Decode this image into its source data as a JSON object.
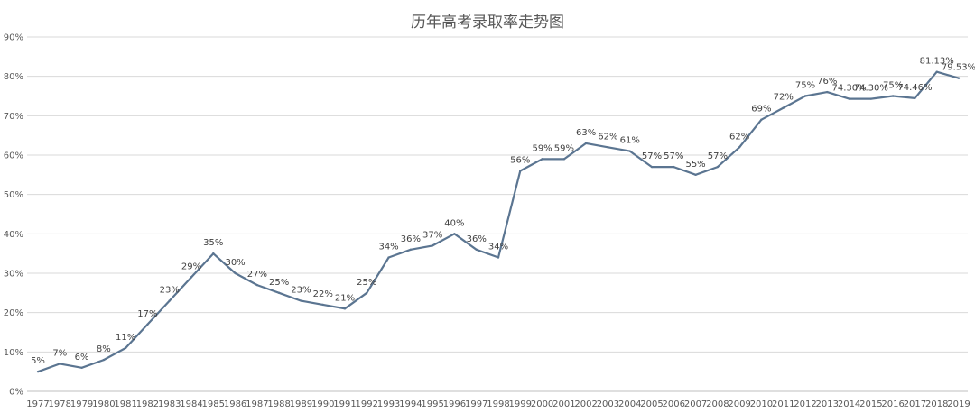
{
  "chart_data": {
    "type": "line",
    "title": "历年高考录取率走势图",
    "xlabel": "",
    "ylabel": "",
    "ylim": [
      0,
      90
    ],
    "y_ticks": [
      "0%",
      "10%",
      "20%",
      "30%",
      "40%",
      "50%",
      "60%",
      "70%",
      "80%",
      "90%"
    ],
    "grid": true,
    "legend": "none",
    "colors": {
      "line": "#5b7591",
      "grid": "#d9d9d9",
      "axis": "#bfbfbf"
    },
    "categories": [
      "1977",
      "1978",
      "1979",
      "1980",
      "1981",
      "1982",
      "1983",
      "1984",
      "1985",
      "1986",
      "1987",
      "1988",
      "1989",
      "1990",
      "1991",
      "1992",
      "1993",
      "1994",
      "1995",
      "1996",
      "1997",
      "1998",
      "1999",
      "2000",
      "2001",
      "2002",
      "2003",
      "2004",
      "2005",
      "2006",
      "2007",
      "2008",
      "2009",
      "2010",
      "2011",
      "2012",
      "2013",
      "2014",
      "2015",
      "2016",
      "2017",
      "2018",
      "2019"
    ],
    "series": [
      {
        "values": [
          5,
          7,
          6,
          8,
          11,
          17,
          23,
          29,
          35,
          30,
          27,
          25,
          23,
          22,
          21,
          25,
          34,
          36,
          37,
          40,
          36,
          34,
          56,
          59,
          59,
          63,
          62,
          61,
          57,
          57,
          55,
          57,
          62,
          69,
          72,
          75,
          76,
          74.3,
          74.3,
          75,
          74.46,
          81.13,
          79.53
        ],
        "labels": [
          "5%",
          "7%",
          "6%",
          "8%",
          "11%",
          "17%",
          "23%",
          "29%",
          "35%",
          "30%",
          "27%",
          "25%",
          "23%",
          "22%",
          "21%",
          "25%",
          "34%",
          "36%",
          "37%",
          "40%",
          "36%",
          "34%",
          "56%",
          "59%",
          "59%",
          "63%",
          "62%",
          "61%",
          "57%",
          "57%",
          "55%",
          "57%",
          "62%",
          "69%",
          "72%",
          "75%",
          "76%",
          "74.30%",
          "74.30%",
          "75%",
          "74.46%",
          "81.13%",
          "79.53%"
        ]
      }
    ]
  }
}
